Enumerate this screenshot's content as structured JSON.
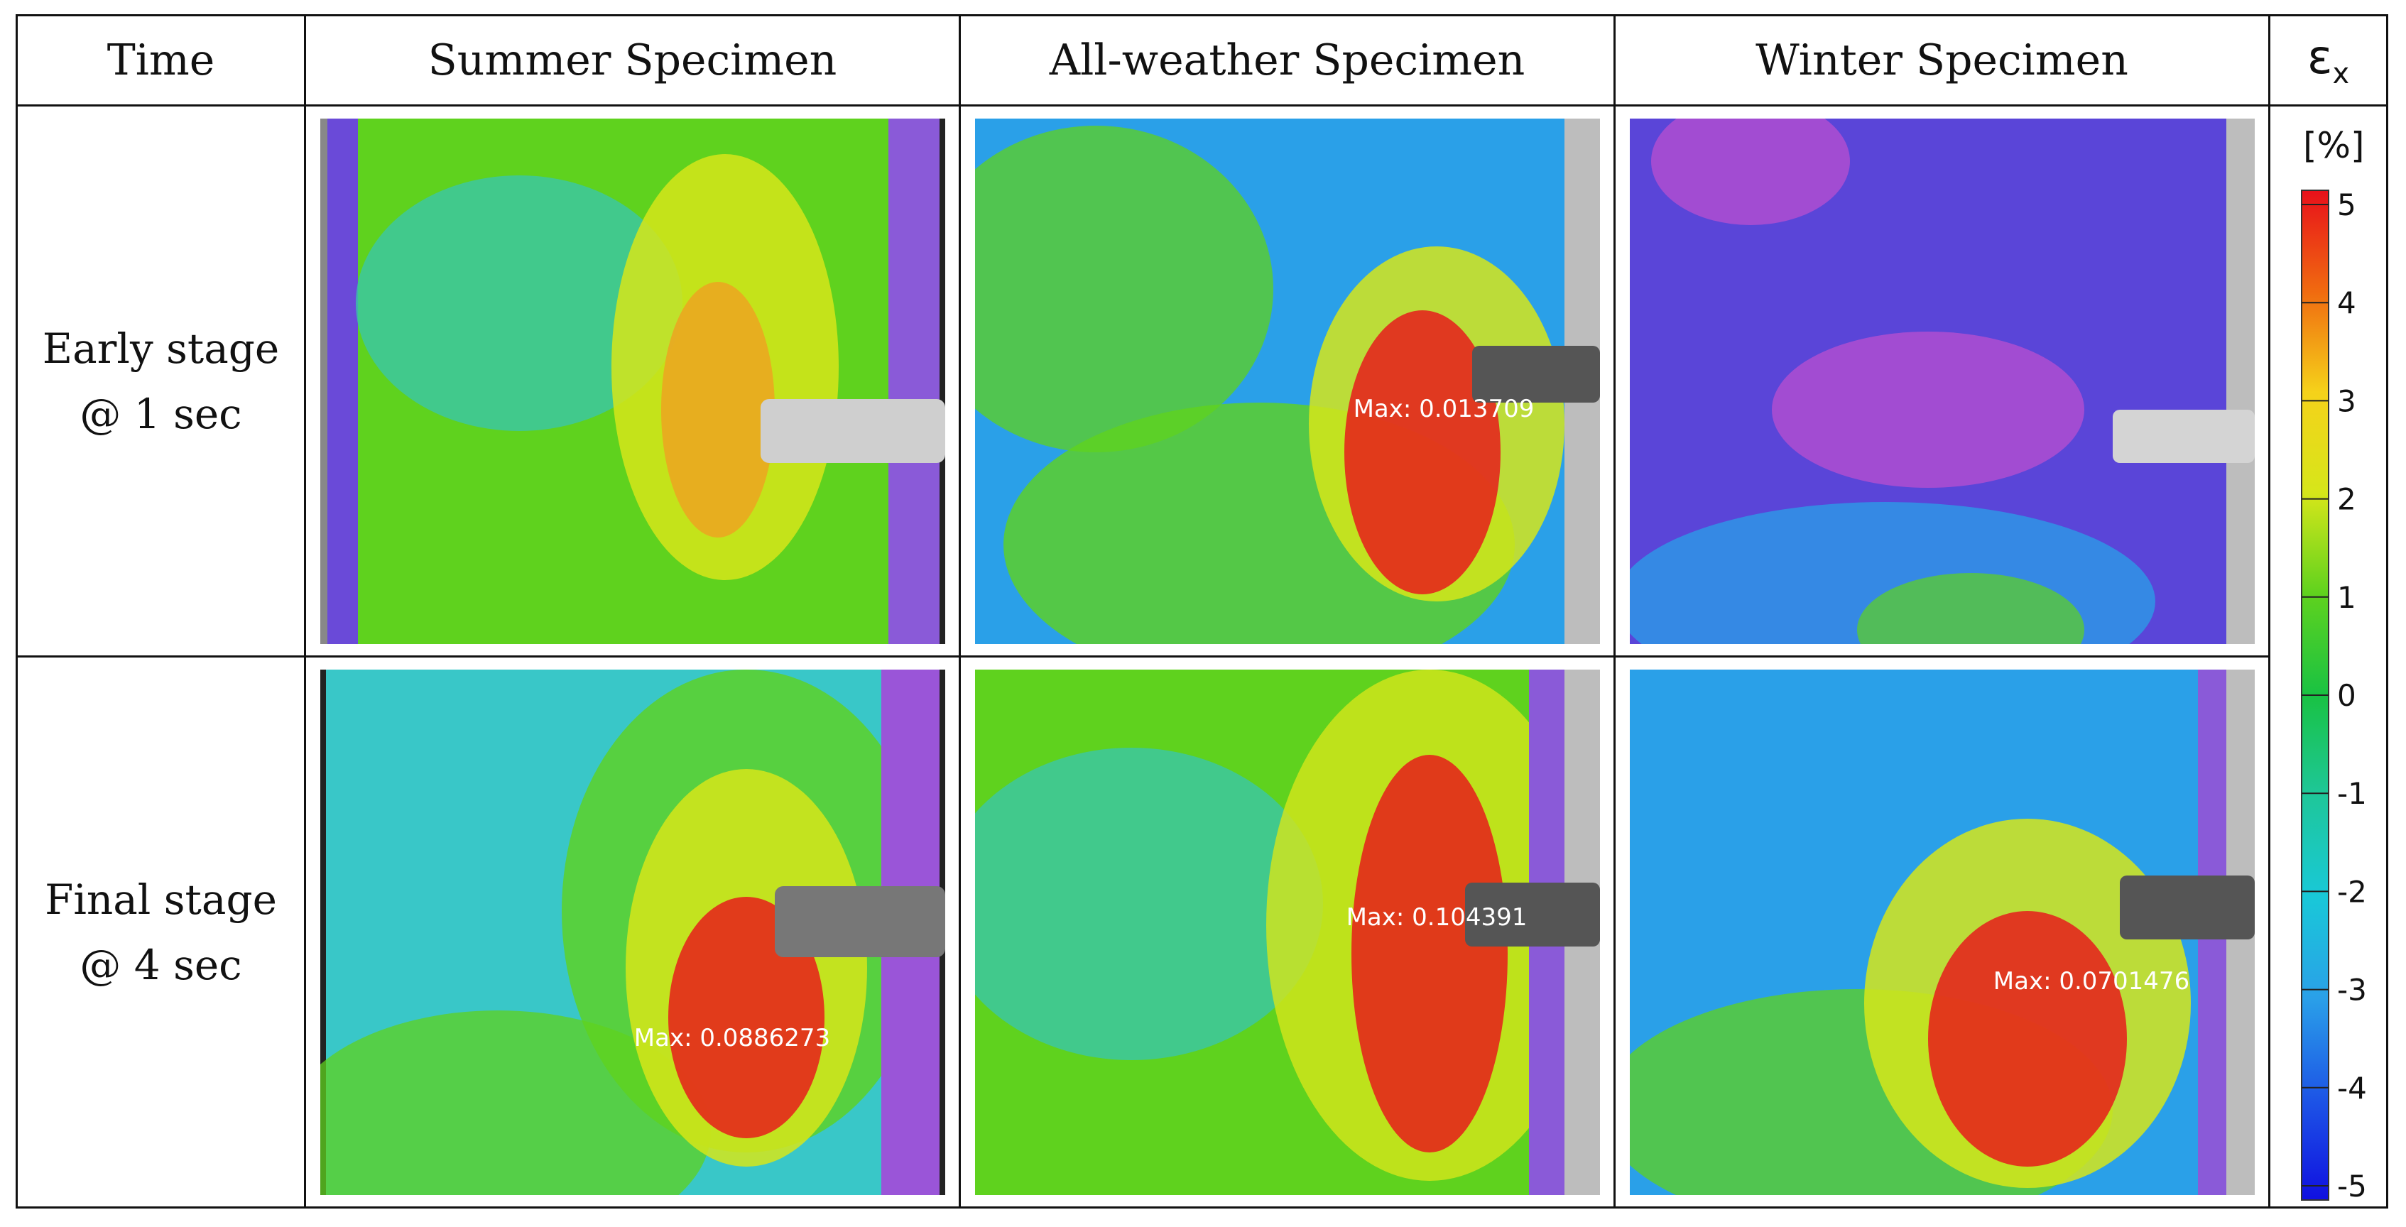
{
  "header": {
    "time": "Time",
    "summer": "Summer Specimen",
    "allweather": "All-weather Specimen",
    "winter": "Winter Specimen",
    "symbol": "ε",
    "symbol_sub": "x"
  },
  "rows": [
    {
      "stage": "Early stage",
      "time": "@ 1 sec",
      "panels": [
        {
          "specimen": "Summer Specimen",
          "max_label": ""
        },
        {
          "specimen": "All-weather Specimen",
          "max_label": "Max: 0.013709"
        },
        {
          "specimen": "Winter Specimen",
          "max_label": ""
        }
      ]
    },
    {
      "stage": "Final stage",
      "time": "@ 4 sec",
      "panels": [
        {
          "specimen": "Summer Specimen",
          "max_label": "Max: 0.0886273"
        },
        {
          "specimen": "All-weather Specimen",
          "max_label": "Max: 0.104391"
        },
        {
          "specimen": "Winter Specimen",
          "max_label": "Max: 0.0701476"
        }
      ]
    }
  ],
  "colorbar": {
    "unit": "[%]",
    "ticks": [
      "5",
      "4",
      "3",
      "2",
      "1",
      "0",
      "-1",
      "-2",
      "-3",
      "-4",
      "-5"
    ],
    "colors": [
      "#e8101a",
      "#f06a10",
      "#f5d21a",
      "#d6e61a",
      "#5fd21e",
      "#19c243",
      "#1ec79a",
      "#19c8d8",
      "#2aa0e8",
      "#1d55e6",
      "#1010e0"
    ]
  }
}
